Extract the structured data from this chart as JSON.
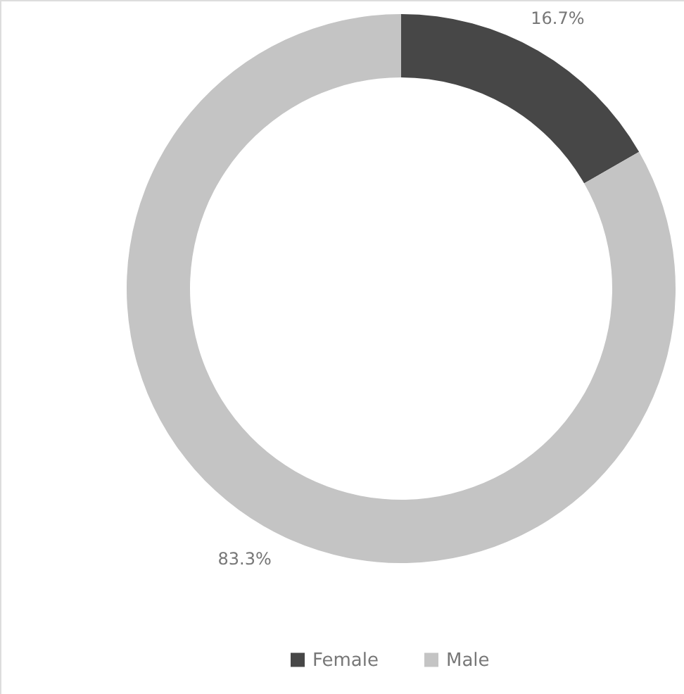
{
  "chart_data": {
    "type": "donut",
    "categories": [
      "Female",
      "Male"
    ],
    "values": [
      16.7,
      83.3
    ],
    "colors": [
      "#474747",
      "#c4c4c4"
    ],
    "value_labels": [
      "16.7%",
      "83.3%"
    ],
    "legend": "bottom"
  }
}
